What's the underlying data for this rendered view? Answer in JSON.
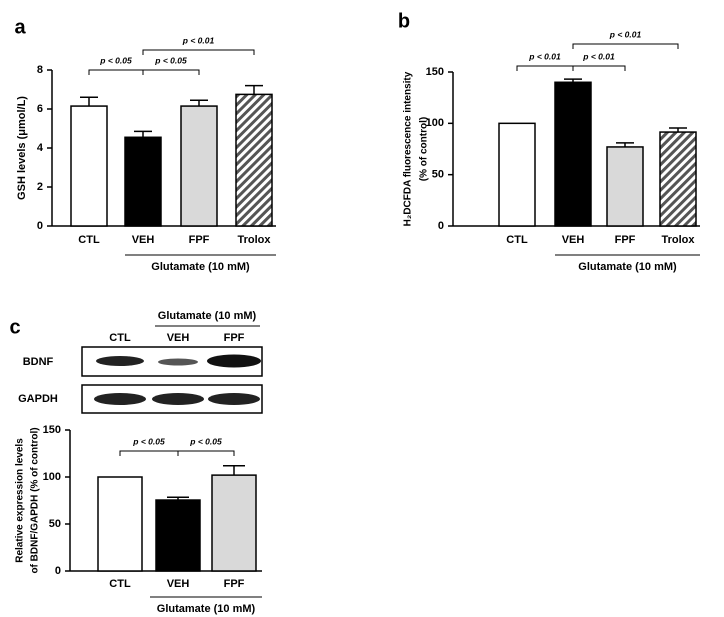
{
  "chart_data": [
    {
      "type": "bar",
      "panel": "a",
      "ylabel": [
        "GSH levels (μmol/L)"
      ],
      "categories": [
        "CTL",
        "VEH",
        "FPF",
        "Trolox"
      ],
      "values": [
        6.15,
        4.55,
        6.15,
        6.75
      ],
      "errors": [
        0.45,
        0.3,
        0.3,
        0.45
      ],
      "colors": [
        "#ffffff",
        "#000000",
        "#d9d9d9",
        "#7f7f7f"
      ],
      "hatched": [
        false,
        false,
        false,
        true
      ],
      "ylim": [
        0,
        8
      ],
      "yticks": [
        0,
        2,
        4,
        6,
        8
      ],
      "group_label": "Glutamate (10 mM)",
      "annotations": [
        "p < 0.05",
        "p < 0.05",
        "p < 0.01"
      ]
    },
    {
      "type": "bar",
      "panel": "b",
      "ylabel": [
        "H₂DCFDA fluorescence intensity",
        "(% of control)"
      ],
      "categories": [
        "CTL",
        "VEH",
        "FPF",
        "Trolox"
      ],
      "values": [
        100,
        140,
        77,
        91.5
      ],
      "errors": [
        0,
        3,
        4,
        4
      ],
      "colors": [
        "#ffffff",
        "#000000",
        "#d9d9d9",
        "#7f7f7f"
      ],
      "hatched": [
        false,
        false,
        false,
        true
      ],
      "ylim": [
        0,
        150
      ],
      "yticks": [
        0,
        50,
        100,
        150
      ],
      "group_label": "Glutamate (10 mM)",
      "annotations": [
        "p < 0.01",
        "p < 0.01",
        "p < 0.01"
      ]
    },
    {
      "type": "bar",
      "panel": "c",
      "ylabel": [
        "Relative expression levels",
        "of BDNF/GAPDH (% of control)"
      ],
      "categories": [
        "CTL",
        "VEH",
        "FPF"
      ],
      "values": [
        100,
        75.5,
        102
      ],
      "errors": [
        0,
        3,
        10
      ],
      "colors": [
        "#ffffff",
        "#000000",
        "#d9d9d9"
      ],
      "hatched": [
        false,
        false,
        false
      ],
      "ylim": [
        0,
        150
      ],
      "yticks": [
        0,
        50,
        100,
        150
      ],
      "group_label": "Glutamate (10 mM)",
      "annotations": [
        "p < 0.05",
        "p < 0.05"
      ]
    }
  ],
  "blot": {
    "lanes": [
      "CTL",
      "VEH",
      "FPF"
    ],
    "group_label": "Glutamate (10 mM)",
    "rows": [
      "BDNF",
      "GAPDH"
    ]
  }
}
